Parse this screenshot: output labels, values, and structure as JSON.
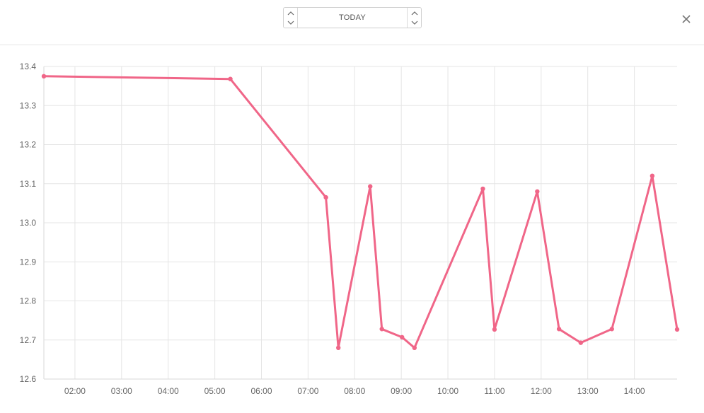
{
  "header": {
    "date_label": "TODAY",
    "step_icons": [
      "chevron-up-icon",
      "chevron-down-icon"
    ],
    "close_icon": "close-icon"
  },
  "colors": {
    "line": "#f06688",
    "grid": "#e5e5e5",
    "text": "#666666"
  },
  "chart_data": {
    "type": "line",
    "title": "",
    "xlabel": "",
    "ylabel": "",
    "x_range": [
      "01:20",
      "14:55"
    ],
    "ylim": [
      12.6,
      13.4
    ],
    "x_ticks": [
      "02:00",
      "03:00",
      "04:00",
      "05:00",
      "06:00",
      "07:00",
      "08:00",
      "09:00",
      "10:00",
      "11:00",
      "12:00",
      "13:00",
      "14:00"
    ],
    "y_ticks": [
      "12.6",
      "12.7",
      "12.8",
      "12.9",
      "13.0",
      "13.1",
      "13.2",
      "13.3",
      "13.4"
    ],
    "grid": true,
    "legend": "none",
    "series": [
      {
        "points": [
          {
            "x": "01:20",
            "y": 13.375
          },
          {
            "x": "05:20",
            "y": 13.368
          },
          {
            "x": "07:23",
            "y": 13.065
          },
          {
            "x": "07:39",
            "y": 12.68
          },
          {
            "x": "08:20",
            "y": 13.093
          },
          {
            "x": "08:35",
            "y": 12.728
          },
          {
            "x": "09:01",
            "y": 12.707
          },
          {
            "x": "09:17",
            "y": 12.68
          },
          {
            "x": "10:45",
            "y": 13.087
          },
          {
            "x": "11:00",
            "y": 12.727
          },
          {
            "x": "11:55",
            "y": 13.08
          },
          {
            "x": "12:23",
            "y": 12.728
          },
          {
            "x": "12:51",
            "y": 12.693
          },
          {
            "x": "13:31",
            "y": 12.728
          },
          {
            "x": "14:23",
            "y": 13.12
          },
          {
            "x": "14:55",
            "y": 12.727
          }
        ]
      }
    ]
  }
}
